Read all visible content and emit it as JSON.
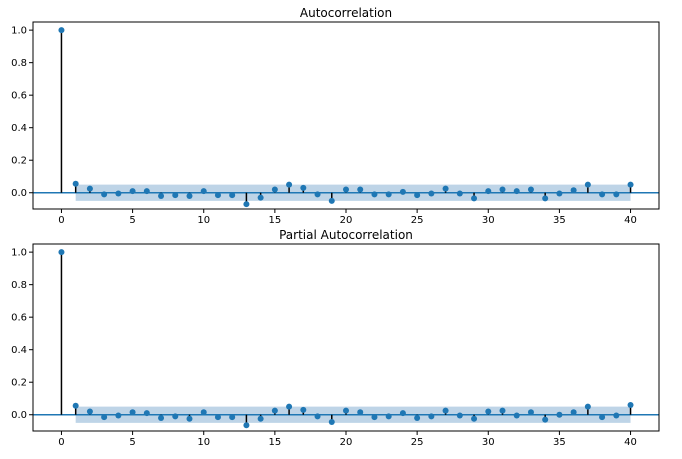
{
  "chart_data": [
    {
      "type": "stem",
      "title": "Autocorrelation",
      "xlabel": "",
      "ylabel": "",
      "xlim": [
        -2,
        42
      ],
      "ylim": [
        -0.1,
        1.05
      ],
      "xticks": [
        0,
        5,
        10,
        15,
        20,
        25,
        30,
        35,
        40
      ],
      "yticks": [
        0.0,
        0.2,
        0.4,
        0.6,
        0.8,
        1.0
      ],
      "xtick_labels": [
        "0",
        "5",
        "10",
        "15",
        "20",
        "25",
        "30",
        "35",
        "40"
      ],
      "ytick_labels": [
        "0.0",
        "0.2",
        "0.4",
        "0.6",
        "0.8",
        "1.0"
      ],
      "grid": false,
      "confidence_band": {
        "from": 1,
        "to": 40,
        "lower": -0.05,
        "upper": 0.05
      },
      "x": [
        0,
        1,
        2,
        3,
        4,
        5,
        6,
        7,
        8,
        9,
        10,
        11,
        12,
        13,
        14,
        15,
        16,
        17,
        18,
        19,
        20,
        21,
        22,
        23,
        24,
        25,
        26,
        27,
        28,
        29,
        30,
        31,
        32,
        33,
        34,
        35,
        36,
        37,
        38,
        39,
        40
      ],
      "values": [
        1.0,
        0.055,
        0.025,
        -0.01,
        -0.005,
        0.01,
        0.01,
        -0.02,
        -0.015,
        -0.02,
        0.01,
        -0.015,
        -0.015,
        -0.07,
        -0.03,
        0.02,
        0.05,
        0.03,
        -0.01,
        -0.05,
        0.02,
        0.02,
        -0.01,
        -0.01,
        0.005,
        -0.015,
        -0.005,
        0.025,
        -0.005,
        -0.035,
        0.01,
        0.02,
        0.01,
        0.02,
        -0.035,
        -0.005,
        0.015,
        0.05,
        -0.01,
        -0.01,
        0.05
      ]
    },
    {
      "type": "stem",
      "title": "Partial Autocorrelation",
      "xlabel": "",
      "ylabel": "",
      "xlim": [
        -2,
        42
      ],
      "ylim": [
        -0.1,
        1.05
      ],
      "xticks": [
        0,
        5,
        10,
        15,
        20,
        25,
        30,
        35,
        40
      ],
      "yticks": [
        0.0,
        0.2,
        0.4,
        0.6,
        0.8,
        1.0
      ],
      "xtick_labels": [
        "0",
        "5",
        "10",
        "15",
        "20",
        "25",
        "30",
        "35",
        "40"
      ],
      "ytick_labels": [
        "0.0",
        "0.2",
        "0.4",
        "0.6",
        "0.8",
        "1.0"
      ],
      "grid": false,
      "confidence_band": {
        "from": 1,
        "to": 40,
        "lower": -0.05,
        "upper": 0.05
      },
      "x": [
        0,
        1,
        2,
        3,
        4,
        5,
        6,
        7,
        8,
        9,
        10,
        11,
        12,
        13,
        14,
        15,
        16,
        17,
        18,
        19,
        20,
        21,
        22,
        23,
        24,
        25,
        26,
        27,
        28,
        29,
        30,
        31,
        32,
        33,
        34,
        35,
        36,
        37,
        38,
        39,
        40
      ],
      "values": [
        1.0,
        0.055,
        0.02,
        -0.015,
        -0.005,
        0.015,
        0.01,
        -0.02,
        -0.01,
        -0.025,
        0.015,
        -0.015,
        -0.015,
        -0.065,
        -0.025,
        0.025,
        0.05,
        0.03,
        -0.01,
        -0.045,
        0.025,
        0.015,
        -0.015,
        -0.01,
        0.01,
        -0.02,
        -0.01,
        0.025,
        -0.005,
        -0.025,
        0.02,
        0.025,
        -0.005,
        0.015,
        -0.03,
        0.0,
        0.015,
        0.05,
        -0.015,
        -0.005,
        0.06
      ]
    }
  ],
  "colors": {
    "marker": "#1f77b4",
    "stem": "#000000",
    "baseline": "#1f77b4",
    "band": "#b3cde3",
    "axes": "#000000"
  }
}
